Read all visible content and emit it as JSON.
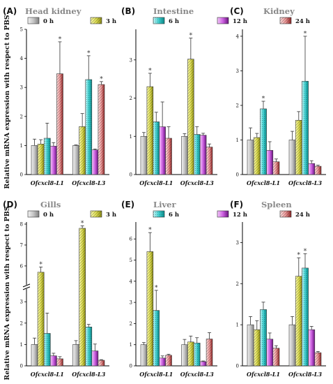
{
  "figure": {
    "y_axis_label": "Relative mRNA expression with respect to PBS",
    "legend": [
      {
        "label": "0 h",
        "color": "#c8c8c8",
        "pattern": "solid-gray"
      },
      {
        "label": "3 h",
        "color": "#e6e65a",
        "pattern": "yellow-hatch"
      },
      {
        "label": "6 h",
        "color": "#40d0d0",
        "pattern": "cyan-dots"
      },
      {
        "label": "12 h",
        "color": "#d070e0",
        "pattern": "magenta-solid"
      },
      {
        "label": "24 h",
        "color": "#f0a0a0",
        "pattern": "pink-hatch"
      }
    ],
    "significance_marker": "*"
  },
  "chart_data": [
    {
      "panel": "(A)",
      "title": "Head kidney",
      "type": "bar",
      "categories": [
        "Ofcxcl8-L1",
        "Ofcxcl8-L3"
      ],
      "ylim": [
        0,
        5
      ],
      "yticks": [
        0,
        1,
        2,
        3,
        4,
        5
      ],
      "series": [
        {
          "name": "0 h",
          "values": [
            1.0,
            1.0
          ],
          "errors": [
            0.22,
            0.02
          ],
          "sig": [
            false,
            false
          ]
        },
        {
          "name": "3 h",
          "values": [
            1.05,
            1.65
          ],
          "errors": [
            0.15,
            0.45
          ],
          "sig": [
            false,
            false
          ]
        },
        {
          "name": "6 h",
          "values": [
            1.25,
            3.27
          ],
          "errors": [
            0.52,
            0.82
          ],
          "sig": [
            false,
            true
          ]
        },
        {
          "name": "12 h",
          "values": [
            0.98,
            0.85
          ],
          "errors": [
            0.12,
            0.03
          ],
          "sig": [
            false,
            false
          ]
        },
        {
          "name": "24 h",
          "values": [
            3.47,
            3.1
          ],
          "errors": [
            1.1,
            0.1
          ],
          "sig": [
            true,
            true
          ]
        }
      ]
    },
    {
      "panel": "(B)",
      "title": "Intestine",
      "type": "bar",
      "categories": [
        "Ofcxcl8-L1",
        "Ofcxcl8-L3"
      ],
      "ylim": [
        0,
        3.8
      ],
      "yticks": [
        0,
        1,
        2,
        3
      ],
      "series": [
        {
          "name": "0 h",
          "values": [
            1.0,
            1.0
          ],
          "errors": [
            0.1,
            0.07
          ],
          "sig": [
            false,
            false
          ]
        },
        {
          "name": "3 h",
          "values": [
            2.3,
            3.02
          ],
          "errors": [
            0.35,
            0.55
          ],
          "sig": [
            true,
            true
          ]
        },
        {
          "name": "6 h",
          "values": [
            1.38,
            1.05
          ],
          "errors": [
            0.25,
            0.2
          ],
          "sig": [
            false,
            false
          ]
        },
        {
          "name": "12 h",
          "values": [
            1.25,
            1.03
          ],
          "errors": [
            0.65,
            0.05
          ],
          "sig": [
            false,
            false
          ]
        },
        {
          "name": "24 h",
          "values": [
            0.95,
            0.72
          ],
          "errors": [
            0.3,
            0.08
          ],
          "sig": [
            false,
            false
          ]
        }
      ]
    },
    {
      "panel": "(C)",
      "title": "Kidney",
      "type": "bar",
      "categories": [
        "Ofcxcl8-L1",
        "Ofcxcl8-L3"
      ],
      "ylim": [
        0,
        4.2
      ],
      "yticks": [
        0,
        1,
        2,
        3,
        4
      ],
      "series": [
        {
          "name": "0 h",
          "values": [
            1.0,
            1.0
          ],
          "errors": [
            0.35,
            0.25
          ],
          "sig": [
            false,
            false
          ]
        },
        {
          "name": "3 h",
          "values": [
            1.07,
            1.57
          ],
          "errors": [
            0.12,
            0.25
          ],
          "sig": [
            false,
            false
          ]
        },
        {
          "name": "6 h",
          "values": [
            1.9,
            2.7
          ],
          "errors": [
            0.22,
            1.3
          ],
          "sig": [
            true,
            true
          ]
        },
        {
          "name": "12 h",
          "values": [
            0.7,
            0.32
          ],
          "errors": [
            0.25,
            0.08
          ],
          "sig": [
            false,
            false
          ]
        },
        {
          "name": "24 h",
          "values": [
            0.37,
            0.24
          ],
          "errors": [
            0.08,
            0.03
          ],
          "sig": [
            false,
            false
          ]
        }
      ]
    },
    {
      "panel": "(D)",
      "title": "Gills",
      "type": "bar",
      "categories": [
        "Ofcxcl8-L1",
        "Ofcxcl8-L3"
      ],
      "axis_break": {
        "lower": [
          0,
          3.5
        ],
        "upper": [
          5.2,
          8.1
        ]
      },
      "yticks": [
        0,
        1,
        2,
        3,
        6,
        7,
        8
      ],
      "series": [
        {
          "name": "0 h",
          "values": [
            1.0,
            1.0
          ],
          "errors": [
            0.3,
            0.18
          ],
          "sig": [
            false,
            false
          ]
        },
        {
          "name": "3 h",
          "values": [
            5.7,
            7.8
          ],
          "errors": [
            0.25,
            0.12
          ],
          "sig": [
            true,
            true
          ]
        },
        {
          "name": "6 h",
          "values": [
            1.52,
            1.82
          ],
          "errors": [
            0.95,
            0.12
          ],
          "sig": [
            false,
            false
          ]
        },
        {
          "name": "12 h",
          "values": [
            0.47,
            0.7
          ],
          "errors": [
            0.12,
            0.32
          ],
          "sig": [
            false,
            false
          ]
        },
        {
          "name": "24 h",
          "values": [
            0.33,
            0.26
          ],
          "errors": [
            0.1,
            0.03
          ],
          "sig": [
            false,
            false
          ]
        }
      ]
    },
    {
      "panel": "(E)",
      "title": "Liver",
      "type": "bar",
      "categories": [
        "Ofcxcl8-L1",
        "Ofcxcl8-L3"
      ],
      "ylim": [
        0,
        6.8
      ],
      "yticks": [
        0,
        1,
        2,
        3,
        4,
        5,
        6
      ],
      "series": [
        {
          "name": "0 h",
          "values": [
            1.0,
            1.0
          ],
          "errors": [
            0.1,
            0.25
          ],
          "sig": [
            false,
            false
          ]
        },
        {
          "name": "3 h",
          "values": [
            5.4,
            1.13
          ],
          "errors": [
            0.9,
            0.28
          ],
          "sig": [
            true,
            false
          ]
        },
        {
          "name": "6 h",
          "values": [
            2.62,
            1.08
          ],
          "errors": [
            0.95,
            0.25
          ],
          "sig": [
            true,
            false
          ]
        },
        {
          "name": "12 h",
          "values": [
            0.37,
            0.2
          ],
          "errors": [
            0.1,
            0.03
          ],
          "sig": [
            false,
            false
          ]
        },
        {
          "name": "24 h",
          "values": [
            0.5,
            1.27
          ],
          "errors": [
            0.05,
            0.3
          ],
          "sig": [
            false,
            false
          ]
        }
      ]
    },
    {
      "panel": "(F)",
      "title": "Spleen",
      "type": "bar",
      "categories": [
        "Ofcxcl8-L1",
        "Ofcxcl8-L3"
      ],
      "ylim": [
        0,
        3.5
      ],
      "yticks": [
        0,
        1,
        2,
        3
      ],
      "series": [
        {
          "name": "0 h",
          "values": [
            1.0,
            1.0
          ],
          "errors": [
            0.2,
            0.2
          ],
          "sig": [
            false,
            false
          ]
        },
        {
          "name": "3 h",
          "values": [
            0.88,
            2.18
          ],
          "errors": [
            0.22,
            0.45
          ],
          "sig": [
            false,
            true
          ]
        },
        {
          "name": "6 h",
          "values": [
            1.37,
            2.38
          ],
          "errors": [
            0.18,
            0.35
          ],
          "sig": [
            false,
            true
          ]
        },
        {
          "name": "12 h",
          "values": [
            0.65,
            0.88
          ],
          "errors": [
            0.15,
            0.08
          ],
          "sig": [
            false,
            false
          ]
        },
        {
          "name": "24 h",
          "values": [
            0.43,
            0.32
          ],
          "errors": [
            0.06,
            0.03
          ],
          "sig": [
            false,
            false
          ]
        }
      ]
    }
  ]
}
